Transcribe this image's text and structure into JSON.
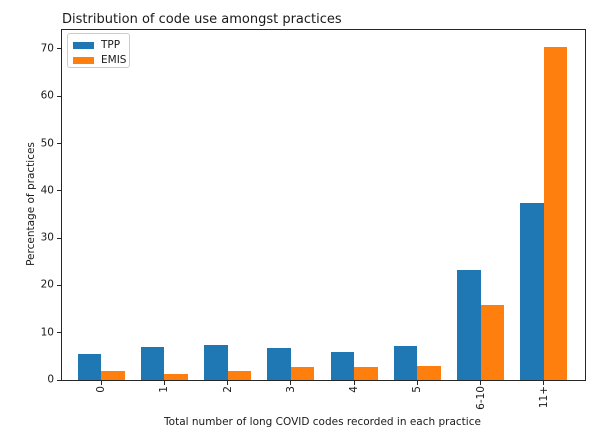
{
  "chart_data": {
    "type": "bar",
    "title": "Distribution of code use amongst practices",
    "categories": [
      "0",
      "1",
      "2",
      "3",
      "4",
      "5",
      "6-10",
      "11+"
    ],
    "series": [
      {
        "name": "TPP",
        "color": "#1f77b4",
        "values": [
          5.4,
          6.9,
          7.4,
          6.8,
          6.0,
          7.1,
          23.2,
          37.5
        ]
      },
      {
        "name": "EMIS",
        "color": "#ff7f0e",
        "values": [
          2.0,
          1.3,
          2.0,
          2.7,
          2.7,
          3.0,
          15.9,
          70.5
        ]
      }
    ],
    "xlabel": "Total number of long COVID codes recorded in each practice",
    "ylabel": "Percentage of practices",
    "ylim": [
      0,
      74
    ],
    "yticks": [
      0,
      10,
      20,
      30,
      40,
      50,
      60,
      70
    ],
    "xtick_rotation_deg": 90,
    "legend_position": "upper-left",
    "grid": false,
    "axis_color": "#262626",
    "background_color": "#ffffff"
  }
}
